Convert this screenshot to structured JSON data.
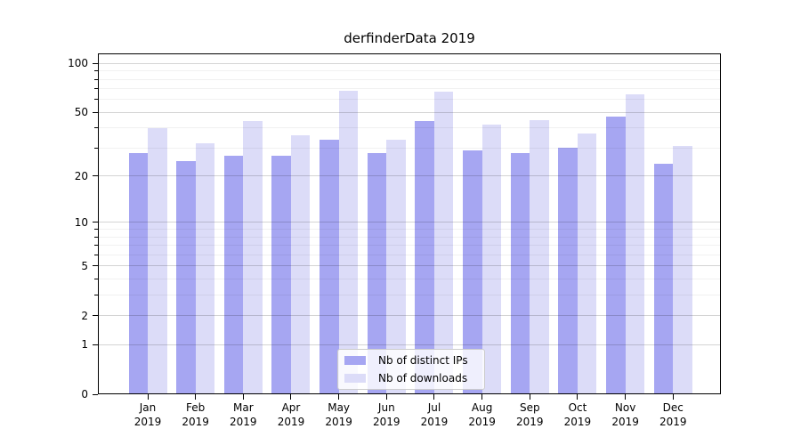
{
  "chart_data": {
    "type": "bar",
    "title": "derfinderData 2019",
    "xlabel": "",
    "ylabel": "",
    "x_months": [
      "Jan",
      "Feb",
      "Mar",
      "Apr",
      "May",
      "Jun",
      "Jul",
      "Aug",
      "Sep",
      "Oct",
      "Nov",
      "Dec"
    ],
    "x_year": "2019",
    "series": [
      {
        "name": "Nb of distinct IPs",
        "values": [
          28,
          25,
          27,
          27,
          34,
          28,
          44,
          29,
          28,
          30,
          47,
          24
        ],
        "color": "#a6a6f2"
      },
      {
        "name": "Nb of downloads",
        "values": [
          40,
          32,
          44,
          36,
          68,
          34,
          67,
          42,
          45,
          37,
          65,
          31
        ],
        "color": "#dcdcf8"
      }
    ],
    "y_scale": "log1p",
    "y_major_ticks": [
      0,
      1,
      2,
      5,
      10,
      20,
      50,
      100
    ],
    "y_minor_ticks": [
      3,
      4,
      6,
      7,
      8,
      9,
      30,
      40,
      60,
      70,
      80,
      90
    ],
    "ylim": [
      0,
      115
    ],
    "grid": "horizontal",
    "legend_position": "lower center"
  }
}
